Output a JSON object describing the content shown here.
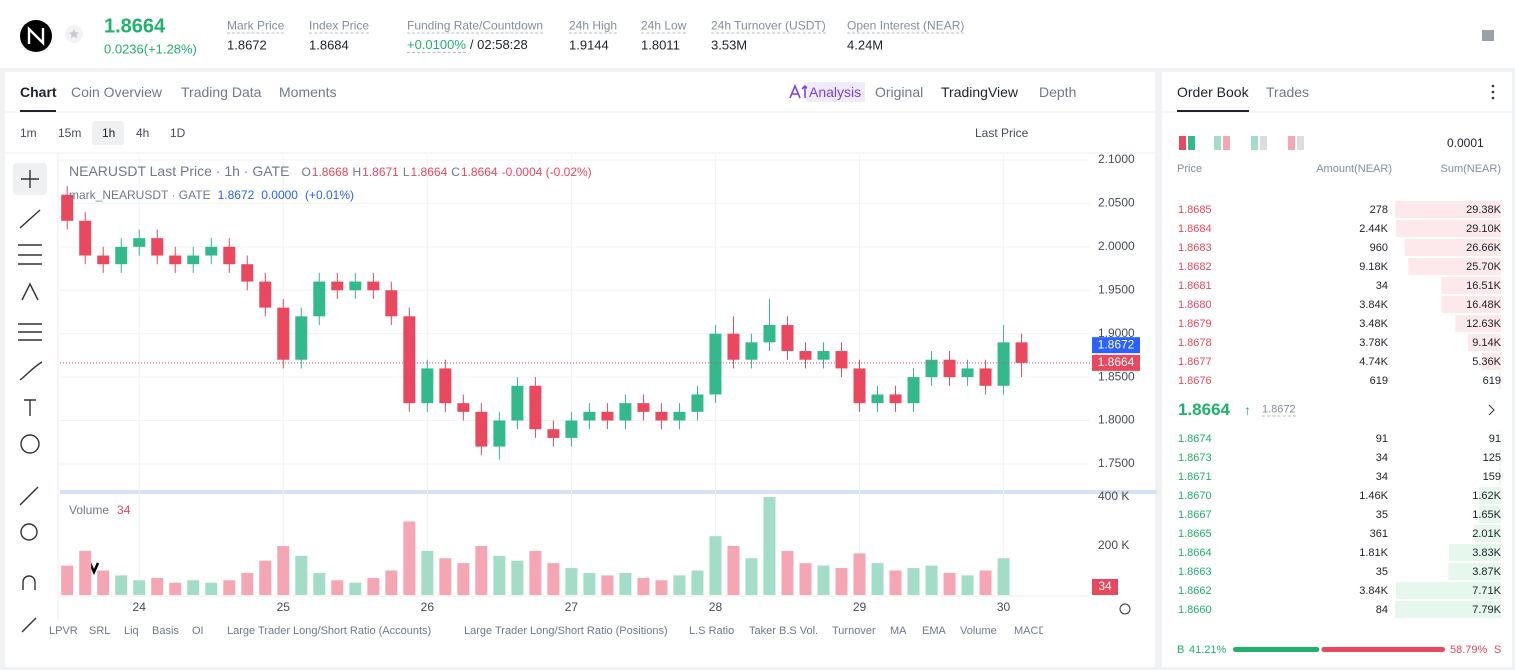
{
  "header": {
    "price": "1.8664",
    "change": "0.0236(+1.28%)",
    "stats": [
      {
        "label": "Mark Price",
        "value": "1.8672"
      },
      {
        "label": "Index Price",
        "value": "1.8684"
      },
      {
        "label": "Funding Rate/Countdown",
        "value": "+0.0100%",
        "extra": "/ 02:58:28"
      },
      {
        "label": "24h High",
        "value": "1.9144"
      },
      {
        "label": "24h Low",
        "value": "1.8011"
      },
      {
        "label": "24h Turnover (USDT)",
        "value": "3.53M"
      },
      {
        "label": "Open Interest (NEAR)",
        "value": "4.24M"
      }
    ]
  },
  "tabs": [
    "Chart",
    "Coin Overview",
    "Trading Data",
    "Moments"
  ],
  "view_tabs": [
    "Analysis",
    "Original",
    "TradingView",
    "Depth"
  ],
  "intervals": [
    "1m",
    "15m",
    "1h",
    "4h",
    "1D"
  ],
  "price_type": "Last Price",
  "chart_data": {
    "type": "candlestick",
    "title": "NEARUSDT Last Price · 1h · GATE",
    "ohlc": [
      {
        "key": "O",
        "value": "1.8668"
      },
      {
        "key": "H",
        "value": "1.8671"
      },
      {
        "key": "L",
        "value": "1.8664"
      },
      {
        "key": "C",
        "value": "1.8664"
      }
    ],
    "change": "-0.0004 (-0.02%)",
    "mark_title": "mark_NEARUSDT · GATE",
    "mark_values": [
      "1.8672",
      "0.0000",
      "(+0.01%)"
    ],
    "x": [
      23.5,
      23.625,
      23.75,
      23.875,
      24,
      24.125,
      24.25,
      24.375,
      24.5,
      24.625,
      24.75,
      24.875,
      25,
      25.125,
      25.25,
      25.375,
      25.5,
      25.625,
      25.75,
      25.875,
      26,
      26.125,
      26.25,
      26.375,
      26.5,
      26.625,
      26.75,
      26.875,
      27,
      27.125,
      27.25,
      27.375,
      27.5,
      27.625,
      27.75,
      27.875,
      28,
      28.125,
      28.25,
      28.375,
      28.5,
      28.625,
      28.75,
      28.875,
      29,
      29.125,
      29.25,
      29.375,
      29.5,
      29.625,
      29.75,
      29.875,
      30,
      30.125
    ],
    "open": [
      2.06,
      2.03,
      1.99,
      1.98,
      2.0,
      2.01,
      1.99,
      1.98,
      1.99,
      2.0,
      1.98,
      1.96,
      1.93,
      1.87,
      1.92,
      1.96,
      1.95,
      1.96,
      1.95,
      1.92,
      1.82,
      1.86,
      1.82,
      1.81,
      1.77,
      1.8,
      1.84,
      1.79,
      1.78,
      1.8,
      1.81,
      1.8,
      1.82,
      1.81,
      1.8,
      1.81,
      1.83,
      1.9,
      1.87,
      1.89,
      1.91,
      1.88,
      1.87,
      1.88,
      1.86,
      1.82,
      1.83,
      1.82,
      1.85,
      1.87,
      1.85,
      1.86,
      1.84,
      1.89
    ],
    "high": [
      2.07,
      2.04,
      2.0,
      2.01,
      2.02,
      2.02,
      2.0,
      2.0,
      2.01,
      2.01,
      1.99,
      1.97,
      1.94,
      1.93,
      1.97,
      1.97,
      1.97,
      1.97,
      1.96,
      1.93,
      1.87,
      1.87,
      1.83,
      1.82,
      1.81,
      1.85,
      1.85,
      1.8,
      1.81,
      1.82,
      1.82,
      1.83,
      1.83,
      1.82,
      1.82,
      1.84,
      1.91,
      1.92,
      1.9,
      1.94,
      1.92,
      1.89,
      1.89,
      1.89,
      1.87,
      1.84,
      1.84,
      1.86,
      1.88,
      1.88,
      1.87,
      1.87,
      1.91,
      1.9
    ],
    "low": [
      2.02,
      1.98,
      1.97,
      1.97,
      1.99,
      1.98,
      1.97,
      1.97,
      1.98,
      1.97,
      1.95,
      1.92,
      1.86,
      1.86,
      1.91,
      1.94,
      1.94,
      1.94,
      1.91,
      1.81,
      1.81,
      1.81,
      1.8,
      1.76,
      1.755,
      1.79,
      1.78,
      1.77,
      1.77,
      1.79,
      1.79,
      1.79,
      1.8,
      1.79,
      1.79,
      1.8,
      1.82,
      1.86,
      1.86,
      1.88,
      1.87,
      1.86,
      1.86,
      1.85,
      1.81,
      1.81,
      1.81,
      1.81,
      1.84,
      1.84,
      1.84,
      1.83,
      1.83,
      1.85
    ],
    "close": [
      2.03,
      1.99,
      1.98,
      2.0,
      2.01,
      1.99,
      1.98,
      1.99,
      2.0,
      1.98,
      1.96,
      1.93,
      1.87,
      1.92,
      1.96,
      1.95,
      1.96,
      1.95,
      1.92,
      1.82,
      1.86,
      1.82,
      1.81,
      1.77,
      1.8,
      1.84,
      1.79,
      1.78,
      1.8,
      1.81,
      1.8,
      1.82,
      1.81,
      1.8,
      1.81,
      1.83,
      1.9,
      1.87,
      1.89,
      1.91,
      1.88,
      1.87,
      1.88,
      1.86,
      1.82,
      1.83,
      1.82,
      1.85,
      1.87,
      1.85,
      1.86,
      1.84,
      1.89,
      1.8664
    ],
    "xlim": [
      23.45,
      30.6
    ],
    "xticks": [
      24,
      25,
      26,
      27,
      28,
      29,
      30
    ],
    "ylim": [
      1.72,
      2.1
    ],
    "yticks": [
      {
        "value": 2.1,
        "label": "2.1000"
      },
      {
        "value": 2.05,
        "label": "2.0500"
      },
      {
        "value": 2.0,
        "label": "2.0000"
      },
      {
        "value": 1.95,
        "label": "1.9500"
      },
      {
        "value": 1.9,
        "label": "1.9000"
      },
      {
        "value": 1.85,
        "label": "1.8500"
      },
      {
        "value": 1.8,
        "label": "1.8000"
      },
      {
        "value": 1.75,
        "label": "1.7500"
      }
    ],
    "last_price": {
      "value": 1.8664,
      "label": "1.8664"
    },
    "mark_price": {
      "value": 1.8672,
      "label": "1.8672"
    },
    "grid": true,
    "up_color": "#34b98c",
    "down_color": "#e9485f",
    "volume_up_color": "#a3dcc7",
    "volume_down_color": "#f4a7b2",
    "mark_color": "#2962ff",
    "volume": {
      "name": "Volume",
      "values": [
        120000,
        180000,
        100000,
        80000,
        60000,
        70000,
        50000,
        60000,
        50000,
        60000,
        90000,
        140000,
        200000,
        160000,
        90000,
        60000,
        50000,
        70000,
        100000,
        300000,
        180000,
        150000,
        130000,
        200000,
        160000,
        140000,
        180000,
        130000,
        110000,
        90000,
        80000,
        90000,
        70000,
        60000,
        80000,
        100000,
        240000,
        200000,
        150000,
        400000,
        180000,
        130000,
        120000,
        110000,
        170000,
        130000,
        100000,
        110000,
        120000,
        90000,
        80000,
        100000,
        150000,
        34
      ],
      "ylim": [
        0,
        400000
      ],
      "yticks": [
        {
          "value": 400000,
          "label": "400 K"
        },
        {
          "value": 200000,
          "label": "200 K"
        }
      ]
    }
  },
  "order_book": {
    "tabs": [
      "Order Book",
      "Trades"
    ],
    "precision": "0.0001",
    "columns": [
      "Price",
      "Amount(NEAR)",
      "Sum(NEAR)"
    ],
    "asks": [
      {
        "price": "1.8685",
        "amount": "278",
        "sum": "29.38K"
      },
      {
        "price": "1.8684",
        "amount": "2.44K",
        "sum": "29.10K"
      },
      {
        "price": "1.8683",
        "amount": "960",
        "sum": "26.66K"
      },
      {
        "price": "1.8682",
        "amount": "9.18K",
        "sum": "25.70K"
      },
      {
        "price": "1.8681",
        "amount": "34",
        "sum": "16.51K"
      },
      {
        "price": "1.8680",
        "amount": "3.84K",
        "sum": "16.48K"
      },
      {
        "price": "1.8679",
        "amount": "3.48K",
        "sum": "12.63K"
      },
      {
        "price": "1.8678",
        "amount": "3.78K",
        "sum": "9.14K"
      },
      {
        "price": "1.8677",
        "amount": "4.74K",
        "sum": "5.36K"
      },
      {
        "price": "1.8676",
        "amount": "619",
        "sum": "619"
      }
    ],
    "last": "1.8664",
    "mark": "1.8672",
    "bids": [
      {
        "price": "1.8674",
        "amount": "91",
        "sum": "91"
      },
      {
        "price": "1.8673",
        "amount": "34",
        "sum": "125"
      },
      {
        "price": "1.8671",
        "amount": "34",
        "sum": "159"
      },
      {
        "price": "1.8670",
        "amount": "1.46K",
        "sum": "1.62K"
      },
      {
        "price": "1.8667",
        "amount": "35",
        "sum": "1.65K"
      },
      {
        "price": "1.8665",
        "amount": "361",
        "sum": "2.01K"
      },
      {
        "price": "1.8664",
        "amount": "1.81K",
        "sum": "3.83K"
      },
      {
        "price": "1.8663",
        "amount": "35",
        "sum": "3.87K"
      },
      {
        "price": "1.8662",
        "amount": "3.84K",
        "sum": "7.71K"
      },
      {
        "price": "1.8660",
        "amount": "84",
        "sum": "7.79K"
      }
    ],
    "buy_key": "B",
    "sell_key": "S",
    "buy_ratio": {
      "value": 41.21,
      "label": "41.21%"
    },
    "sell_ratio": {
      "value": 58.79,
      "label": "58.79%"
    }
  },
  "indicators": [
    "LPVR",
    "SRL",
    "Liq",
    "Basis",
    "OI",
    "Large Trader Long/Short Ratio (Accounts)",
    "Large Trader Long/Short Ratio (Positions)",
    "L.S Ratio",
    "Taker B.S Vol.",
    "Turnover",
    "MA",
    "EMA",
    "Volume",
    "MACD"
  ]
}
